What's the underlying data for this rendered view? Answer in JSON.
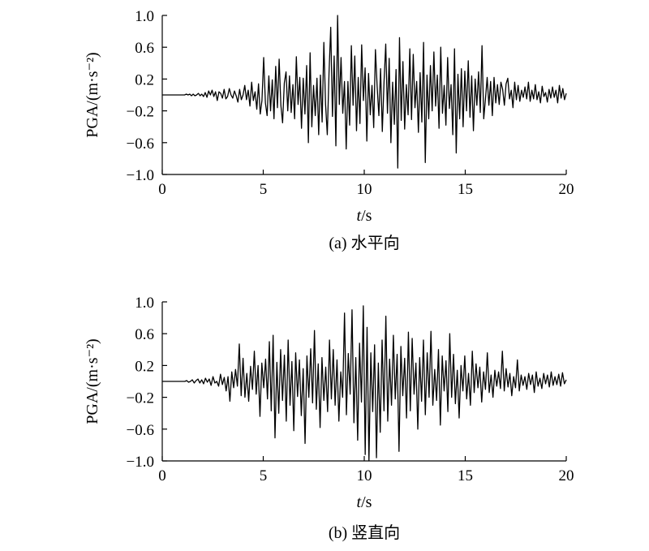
{
  "chart_data": [
    {
      "type": "line",
      "caption": "(a) 水平向",
      "xlabel_italic": "t",
      "xlabel_unit": "/s",
      "ylabel": "PGA/(m·s⁻²)",
      "xlim": [
        0,
        20
      ],
      "ylim": [
        -1.0,
        1.0
      ],
      "xticks": [
        0,
        5,
        10,
        15,
        20
      ],
      "xtick_labels": [
        "0",
        "5",
        "10",
        "15",
        "20"
      ],
      "yticks": [
        1.0,
        0.6,
        0.2,
        -0.2,
        -0.6,
        -1.0
      ],
      "ytick_labels": [
        "1.0",
        "0.6",
        "0.2",
        "−0.2",
        "−0.6",
        "−1.0"
      ],
      "series": [
        {
          "x_start": 0,
          "x_end": 20,
          "values": [
            0.0,
            0.0,
            0.0,
            0.0,
            0.0,
            0.0,
            0.0,
            0.0,
            0.0,
            0.0,
            0.0,
            0.0,
            0.0,
            0.0,
            0.01,
            0.0,
            0.01,
            -0.01,
            0.01,
            -0.01,
            0.0,
            0.02,
            -0.01,
            0.01,
            -0.02,
            0.03,
            -0.03,
            0.05,
            0.0,
            0.06,
            -0.02,
            0.04,
            -0.07,
            0.04,
            0.02,
            -0.04,
            0.07,
            -0.05,
            -0.02,
            0.08,
            0.0,
            -0.04,
            0.05,
            -0.01,
            -0.09,
            0.07,
            -0.06,
            0.0,
            0.12,
            -0.06,
            0.06,
            -0.14,
            0.16,
            -0.07,
            0.04,
            -0.18,
            0.14,
            -0.24,
            -0.07,
            0.47,
            -0.1,
            -0.26,
            0.24,
            -0.2,
            0.19,
            -0.3,
            0.36,
            -0.16,
            0.45,
            -0.13,
            -0.35,
            0.15,
            0.29,
            -0.2,
            0.24,
            -0.22,
            0.13,
            -0.3,
            0.48,
            -0.12,
            0.22,
            -0.42,
            0.21,
            -0.24,
            0.37,
            -0.6,
            0.53,
            -0.4,
            0.12,
            -0.26,
            0.21,
            -0.5,
            0.25,
            -0.34,
            0.66,
            -0.12,
            -0.5,
            0.27,
            0.85,
            -0.27,
            0.49,
            -0.64,
            1.0,
            -0.12,
            0.47,
            -0.23,
            0.17,
            -0.68,
            0.17,
            -0.38,
            0.62,
            -0.13,
            0.49,
            -0.45,
            0.22,
            -0.36,
            0.63,
            -0.07,
            0.34,
            -0.58,
            0.27,
            -0.25,
            0.12,
            -0.41,
            0.57,
            0.11,
            -0.26,
            0.33,
            -0.46,
            0.16,
            0.64,
            -0.23,
            0.46,
            -0.6,
            0.16,
            -0.37,
            0.32,
            -0.92,
            0.72,
            -0.32,
            0.42,
            -0.43,
            0.13,
            -0.25,
            0.58,
            -0.31,
            0.51,
            -0.16,
            0.17,
            -0.47,
            0.28,
            -0.34,
            0.66,
            -0.85,
            0.25,
            -0.3,
            0.37,
            -0.2,
            0.54,
            -0.14,
            0.25,
            -0.42,
            0.6,
            -0.23,
            0.12,
            -0.38,
            0.47,
            -0.17,
            0.13,
            -0.5,
            0.58,
            -0.73,
            0.26,
            -0.3,
            0.33,
            -0.4,
            0.3,
            -0.2,
            0.43,
            -0.28,
            0.24,
            -0.45,
            0.2,
            -0.13,
            0.29,
            -0.22,
            0.62,
            -0.3,
            -0.05,
            0.22,
            -0.13,
            0.17,
            -0.26,
            0.22,
            -0.1,
            0.13,
            -0.12,
            0.16,
            0.07,
            -0.13,
            0.14,
            0.21,
            -0.05,
            0.06,
            -0.16,
            0.16,
            -0.06,
            0.12,
            -0.08,
            0.06,
            -0.03,
            0.1,
            -0.05,
            0.16,
            -0.08,
            0.06,
            -0.05,
            0.13,
            -0.06,
            0.04,
            -0.1,
            0.11,
            -0.02,
            0.03,
            -0.09,
            0.07,
            -0.04,
            0.1,
            -0.03,
            0.06,
            -0.1,
            0.12,
            -0.04,
            0.08,
            -0.06,
            0.02
          ]
        }
      ]
    },
    {
      "type": "line",
      "caption": "(b) 竖直向",
      "xlabel_italic": "t",
      "xlabel_unit": "/s",
      "ylabel": "PGA/(m·s⁻²)",
      "xlim": [
        0,
        20
      ],
      "ylim": [
        -1.0,
        1.0
      ],
      "xticks": [
        0,
        5,
        10,
        15,
        20
      ],
      "xtick_labels": [
        "0",
        "5",
        "10",
        "15",
        "20"
      ],
      "yticks": [
        1.0,
        0.6,
        0.2,
        -0.2,
        -0.6,
        -1.0
      ],
      "ytick_labels": [
        "1.0",
        "0.6",
        "0.2",
        "−0.2",
        "−0.6",
        "−1.0"
      ],
      "series": [
        {
          "x_start": 0,
          "x_end": 20,
          "values": [
            0.0,
            0.0,
            0.0,
            0.0,
            0.0,
            0.0,
            0.0,
            0.0,
            0.0,
            0.0,
            0.0,
            0.0,
            0.0,
            0.01,
            -0.01,
            0.0,
            0.02,
            -0.02,
            0.01,
            0.03,
            -0.02,
            0.02,
            -0.03,
            0.04,
            -0.01,
            0.03,
            -0.05,
            0.06,
            -0.02,
            0.0,
            -0.06,
            0.09,
            -0.04,
            0.05,
            -0.12,
            0.06,
            -0.25,
            0.12,
            -0.08,
            0.15,
            -0.06,
            0.47,
            -0.18,
            0.29,
            -0.2,
            0.1,
            -0.25,
            0.19,
            -0.1,
            0.38,
            -0.16,
            0.2,
            -0.44,
            0.23,
            -0.08,
            0.28,
            -0.22,
            0.5,
            -0.37,
            0.58,
            -0.71,
            0.24,
            -0.4,
            0.4,
            -0.24,
            0.33,
            -0.5,
            0.52,
            -0.3,
            0.25,
            -0.62,
            0.36,
            -0.19,
            0.27,
            -0.43,
            0.16,
            -0.78,
            0.32,
            -0.2,
            0.41,
            -0.27,
            0.64,
            -0.35,
            0.22,
            -0.58,
            0.3,
            -0.24,
            0.18,
            -0.38,
            0.52,
            -0.22,
            0.4,
            -0.3,
            0.27,
            -0.5,
            0.12,
            -0.2,
            0.86,
            -0.42,
            0.35,
            -0.16,
            0.9,
            -0.52,
            0.3,
            -0.74,
            0.48,
            -0.26,
            0.95,
            -0.92,
            0.68,
            -1.0,
            0.36,
            -0.38,
            0.46,
            -0.96,
            0.23,
            -0.64,
            0.52,
            -0.37,
            0.82,
            -0.5,
            0.28,
            -0.3,
            0.58,
            -0.22,
            0.34,
            -0.88,
            0.44,
            -0.18,
            0.29,
            -0.46,
            0.62,
            -0.37,
            0.54,
            -0.16,
            0.23,
            -0.6,
            0.3,
            -0.25,
            0.52,
            -0.42,
            0.36,
            -0.2,
            0.63,
            -0.3,
            0.15,
            -0.24,
            0.4,
            -0.55,
            0.32,
            -0.12,
            0.26,
            -0.38,
            0.6,
            -0.2,
            0.34,
            -0.28,
            0.14,
            -0.46,
            0.2,
            -0.12,
            0.32,
            -0.22,
            0.1,
            -0.3,
            0.38,
            -0.14,
            0.22,
            -0.08,
            0.18,
            -0.26,
            0.12,
            -0.1,
            0.36,
            -0.14,
            0.08,
            -0.2,
            0.14,
            -0.06,
            0.12,
            -0.09,
            0.38,
            -0.12,
            0.16,
            -0.07,
            0.1,
            -0.18,
            0.06,
            -0.08,
            0.27,
            -0.12,
            0.08,
            -0.05,
            0.06,
            -0.1,
            0.1,
            -0.04,
            0.08,
            -0.14,
            0.12,
            -0.06,
            0.04,
            -0.09,
            0.1,
            -0.03,
            0.08,
            -0.07,
            0.12,
            -0.05,
            0.06,
            -0.04,
            0.09,
            -0.06,
            0.11,
            -0.03,
            0.02
          ]
        }
      ]
    }
  ]
}
